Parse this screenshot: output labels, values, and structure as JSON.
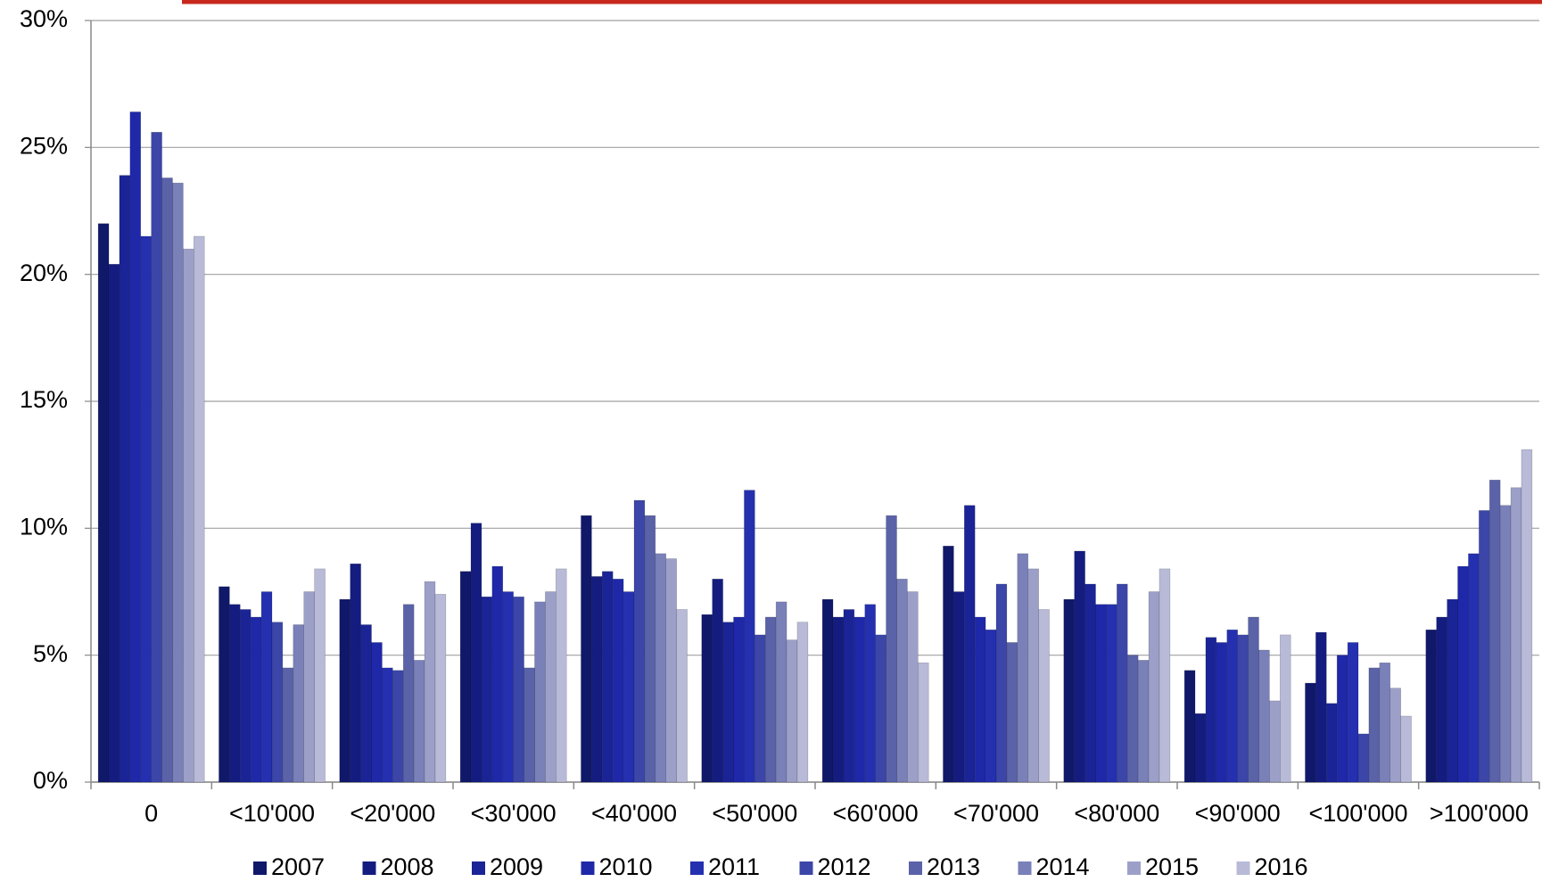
{
  "chart_data": {
    "type": "bar",
    "categories": [
      "0",
      "<10'000",
      "<20'000",
      "<30'000",
      "<40'000",
      "<50'000",
      "<60'000",
      "<70'000",
      "<80'000",
      "<90'000",
      "<100'000",
      ">100'000"
    ],
    "series": [
      {
        "name": "2007",
        "color": "#10186a",
        "values": [
          22.0,
          7.7,
          7.2,
          8.3,
          10.5,
          6.6,
          7.2,
          9.3,
          7.2,
          4.4,
          3.9,
          6.0
        ]
      },
      {
        "name": "2008",
        "color": "#141c80",
        "values": [
          20.4,
          7.0,
          8.6,
          10.2,
          8.1,
          8.0,
          6.5,
          7.5,
          9.1,
          2.7,
          5.9,
          6.5
        ]
      },
      {
        "name": "2009",
        "color": "#1a2496",
        "values": [
          23.9,
          6.8,
          6.2,
          7.3,
          8.3,
          6.3,
          6.8,
          10.9,
          7.8,
          5.7,
          3.1,
          7.2
        ]
      },
      {
        "name": "2010",
        "color": "#1e28a8",
        "values": [
          26.4,
          6.5,
          5.5,
          8.5,
          8.0,
          6.5,
          6.5,
          6.5,
          7.0,
          5.5,
          5.0,
          8.5
        ]
      },
      {
        "name": "2011",
        "color": "#2430b0",
        "values": [
          21.5,
          7.5,
          4.5,
          7.5,
          7.5,
          11.5,
          7.0,
          6.0,
          7.0,
          6.0,
          5.5,
          9.0
        ]
      },
      {
        "name": "2012",
        "color": "#3c46a8",
        "values": [
          25.6,
          6.3,
          4.4,
          7.3,
          11.1,
          5.8,
          5.8,
          7.8,
          7.8,
          5.8,
          1.9,
          10.7
        ]
      },
      {
        "name": "2013",
        "color": "#5a62a8",
        "values": [
          23.8,
          4.5,
          7.0,
          4.5,
          10.5,
          6.5,
          10.5,
          5.5,
          5.0,
          6.5,
          4.5,
          11.9
        ]
      },
      {
        "name": "2014",
        "color": "#7a80b8",
        "values": [
          23.6,
          6.2,
          4.8,
          7.1,
          9.0,
          7.1,
          8.0,
          9.0,
          4.8,
          5.2,
          4.7,
          10.9
        ]
      },
      {
        "name": "2015",
        "color": "#9ca0c8",
        "values": [
          21.0,
          7.5,
          7.9,
          7.5,
          8.8,
          5.6,
          7.5,
          8.4,
          7.5,
          3.2,
          3.7,
          11.6
        ]
      },
      {
        "name": "2016",
        "color": "#b8bad8",
        "values": [
          21.5,
          8.4,
          7.4,
          8.4,
          6.8,
          6.3,
          4.7,
          6.8,
          8.4,
          5.8,
          2.6,
          13.1
        ]
      }
    ],
    "ylim": [
      0,
      30
    ],
    "yticks": [
      {
        "value": 0,
        "label": "0%"
      },
      {
        "value": 5,
        "label": "5%"
      },
      {
        "value": 10,
        "label": "10%"
      },
      {
        "value": 15,
        "label": "15%"
      },
      {
        "value": 20,
        "label": "20%"
      },
      {
        "value": 25,
        "label": "25%"
      },
      {
        "value": 30,
        "label": "30%"
      }
    ],
    "grid": true
  }
}
